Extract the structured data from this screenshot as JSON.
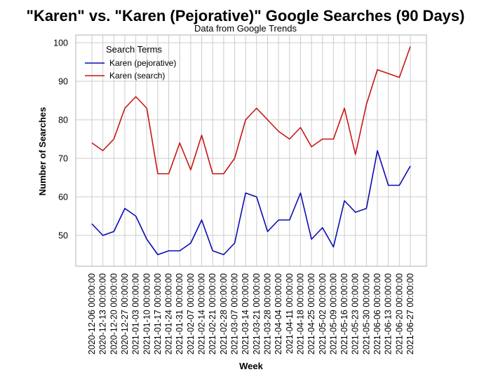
{
  "chart_data": {
    "type": "line",
    "title": "\"Karen\" vs. \"Karen (Pejorative)\" Google Searches (90 Days)",
    "subtitle": "Data from Google Trends",
    "xlabel": "Week",
    "ylabel": "Number of Searches",
    "ylim": [
      42,
      102
    ],
    "yticks": [
      50,
      60,
      70,
      80,
      90,
      100
    ],
    "grid": true,
    "legend": {
      "title": "Search Terms",
      "position": "top-left"
    },
    "x": [
      "2020-12-06 00:00:00",
      "2020-12-13 00:00:00",
      "2020-12-20 00:00:00",
      "2020-12-27 00:00:00",
      "2021-01-03 00:00:00",
      "2021-01-10 00:00:00",
      "2021-01-17 00:00:00",
      "2021-01-24 00:00:00",
      "2021-01-31 00:00:00",
      "2021-02-07 00:00:00",
      "2021-02-14 00:00:00",
      "2021-02-21 00:00:00",
      "2021-02-28 00:00:00",
      "2021-03-07 00:00:00",
      "2021-03-14 00:00:00",
      "2021-03-21 00:00:00",
      "2021-03-28 00:00:00",
      "2021-04-04 00:00:00",
      "2021-04-11 00:00:00",
      "2021-04-18 00:00:00",
      "2021-04-25 00:00:00",
      "2021-05-02 00:00:00",
      "2021-05-09 00:00:00",
      "2021-05-16 00:00:00",
      "2021-05-23 00:00:00",
      "2021-05-30 00:00:00",
      "2021-06-06 00:00:00",
      "2021-06-13 00:00:00",
      "2021-06-20 00:00:00",
      "2021-06-27 00:00:00"
    ],
    "series": [
      {
        "name": "Karen (pejorative)",
        "color": "#0a0ab4",
        "values": [
          53,
          50,
          51,
          57,
          55,
          49,
          45,
          46,
          46,
          48,
          54,
          46,
          45,
          48,
          61,
          60,
          51,
          54,
          54,
          61,
          49,
          52,
          47,
          59,
          56,
          57,
          72,
          63,
          63,
          68
        ]
      },
      {
        "name": "Karen (search)",
        "color": "#c81414",
        "values": [
          74,
          72,
          75,
          83,
          86,
          83,
          66,
          66,
          74,
          67,
          76,
          66,
          66,
          70,
          80,
          83,
          80,
          77,
          75,
          78,
          73,
          75,
          75,
          83,
          71,
          84,
          93,
          92,
          91,
          99
        ]
      }
    ]
  }
}
